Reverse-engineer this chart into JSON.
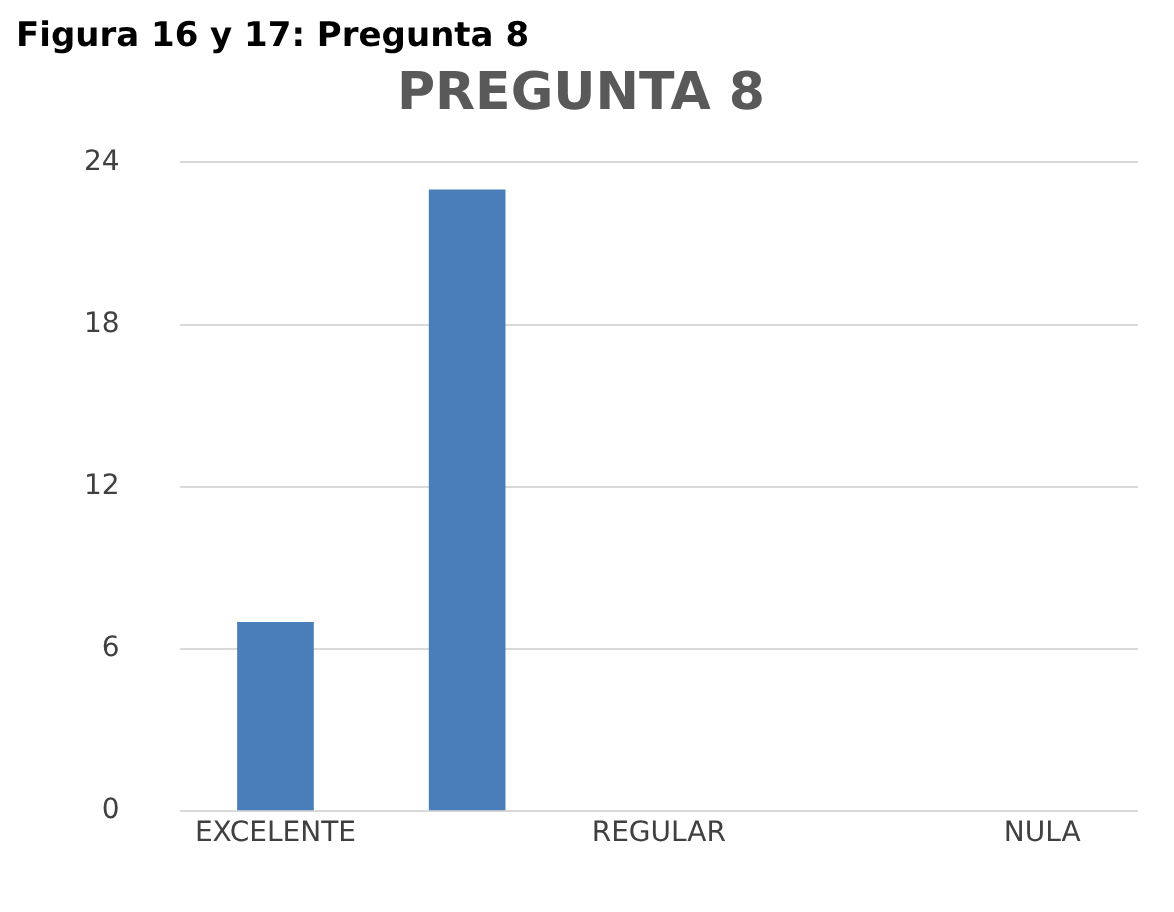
{
  "chart_data": {
    "type": "bar",
    "title": "PREGUNTA 8",
    "annotations": [
      "Figura 16 y 17: Pregunta 8"
    ],
    "categories": [
      "EXCELENTE",
      null,
      "REGULAR",
      null,
      "NULA"
    ],
    "values": [
      7,
      23,
      0,
      0,
      0
    ],
    "color": "#4a7ebb",
    "ylim": [
      0,
      24
    ],
    "yticks": [
      0,
      6,
      12,
      18,
      24
    ],
    "grid": "y",
    "legend": false
  }
}
